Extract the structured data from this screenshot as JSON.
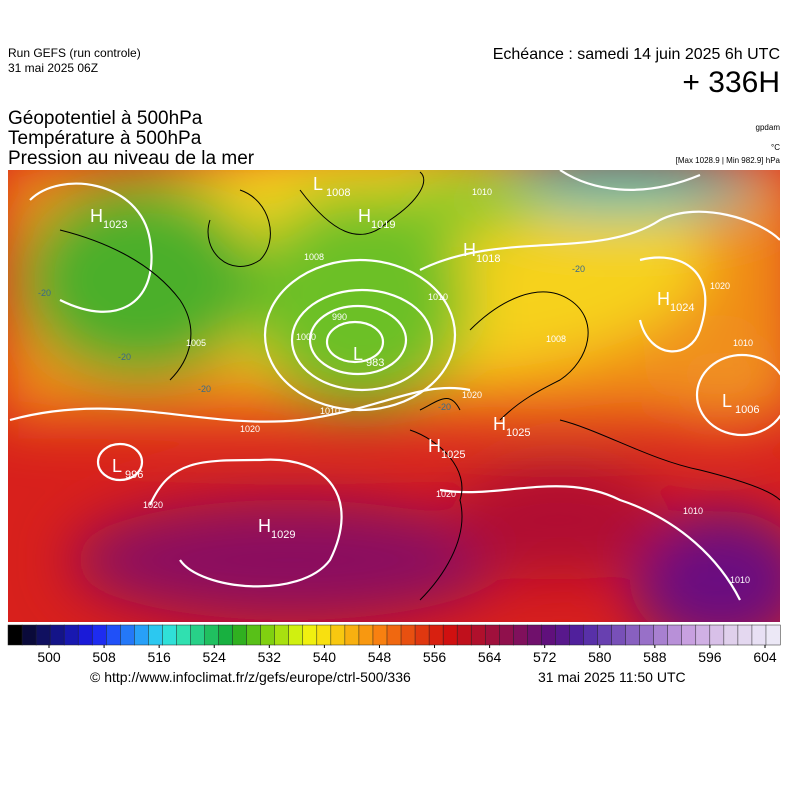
{
  "header": {
    "run": "Run GEFS (run controle)",
    "run_date": "31 mai 2025 06Z",
    "echeance": "Echéance : samedi 14 juin 2025 6h UTC",
    "lead": "+ 336H"
  },
  "titles": [
    "Géopotentiel à 500hPa",
    "Température à 500hPa",
    "Pression au niveau de la mer"
  ],
  "units": {
    "geopotential": "gpdam",
    "temperature": "°C",
    "pressure": "[Max 1028.9 | Min 982.9] hPa"
  },
  "map": {
    "centers": [
      {
        "letter": "H",
        "value": "1023"
      },
      {
        "letter": "L",
        "value": "1008"
      },
      {
        "letter": "H",
        "value": "1019"
      },
      {
        "letter": "H",
        "value": "1018"
      },
      {
        "letter": "H",
        "value": "1024"
      },
      {
        "letter": "L",
        "value": "983"
      },
      {
        "letter": "L",
        "value": "1006"
      },
      {
        "letter": "H",
        "value": "1025"
      },
      {
        "letter": "H",
        "value": "1025"
      },
      {
        "letter": "L",
        "value": "996"
      },
      {
        "letter": "H",
        "value": "1029"
      }
    ],
    "isobar_labels": [
      "1010",
      "1008",
      "1005",
      "1000",
      "990",
      "1010",
      "1010",
      "1020",
      "1020",
      "1020",
      "1020",
      "1010",
      "1010",
      "1020",
      "1008",
      "1010"
    ],
    "temperature_labels": [
      "-20",
      "-20",
      "-20",
      "-20",
      "-20"
    ]
  },
  "colorbar": {
    "ticks": [
      500,
      508,
      516,
      524,
      532,
      540,
      548,
      556,
      564,
      572,
      580,
      588,
      596,
      604
    ]
  },
  "footer": {
    "source": "© http://www.infoclimat.fr/z/gefs/europe/ctrl-500/336",
    "time": "31 mai 2025 11:50 UTC"
  }
}
